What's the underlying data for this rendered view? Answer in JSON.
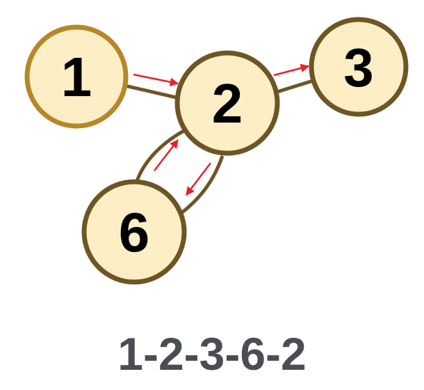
{
  "nodes": [
    {
      "id": "1",
      "label": "1"
    },
    {
      "id": "2",
      "label": "2"
    },
    {
      "id": "3",
      "label": "3"
    },
    {
      "id": "6",
      "label": "6"
    }
  ],
  "edges": [
    {
      "from": "1",
      "to": "2"
    },
    {
      "from": "2",
      "to": "3"
    },
    {
      "from": "2",
      "to": "6"
    },
    {
      "from": "6",
      "to": "2"
    }
  ],
  "traversal": [
    "1",
    "2",
    "3",
    "6",
    "2"
  ],
  "caption": "1-2-3-6-2",
  "colors": {
    "node_fill": "#fdeec6",
    "node_stroke": "#6e5524",
    "node_1_stroke": "#b8862a",
    "edge_stroke": "#6e5524",
    "arrow": "#e8202a",
    "caption": "#4a4d52"
  }
}
